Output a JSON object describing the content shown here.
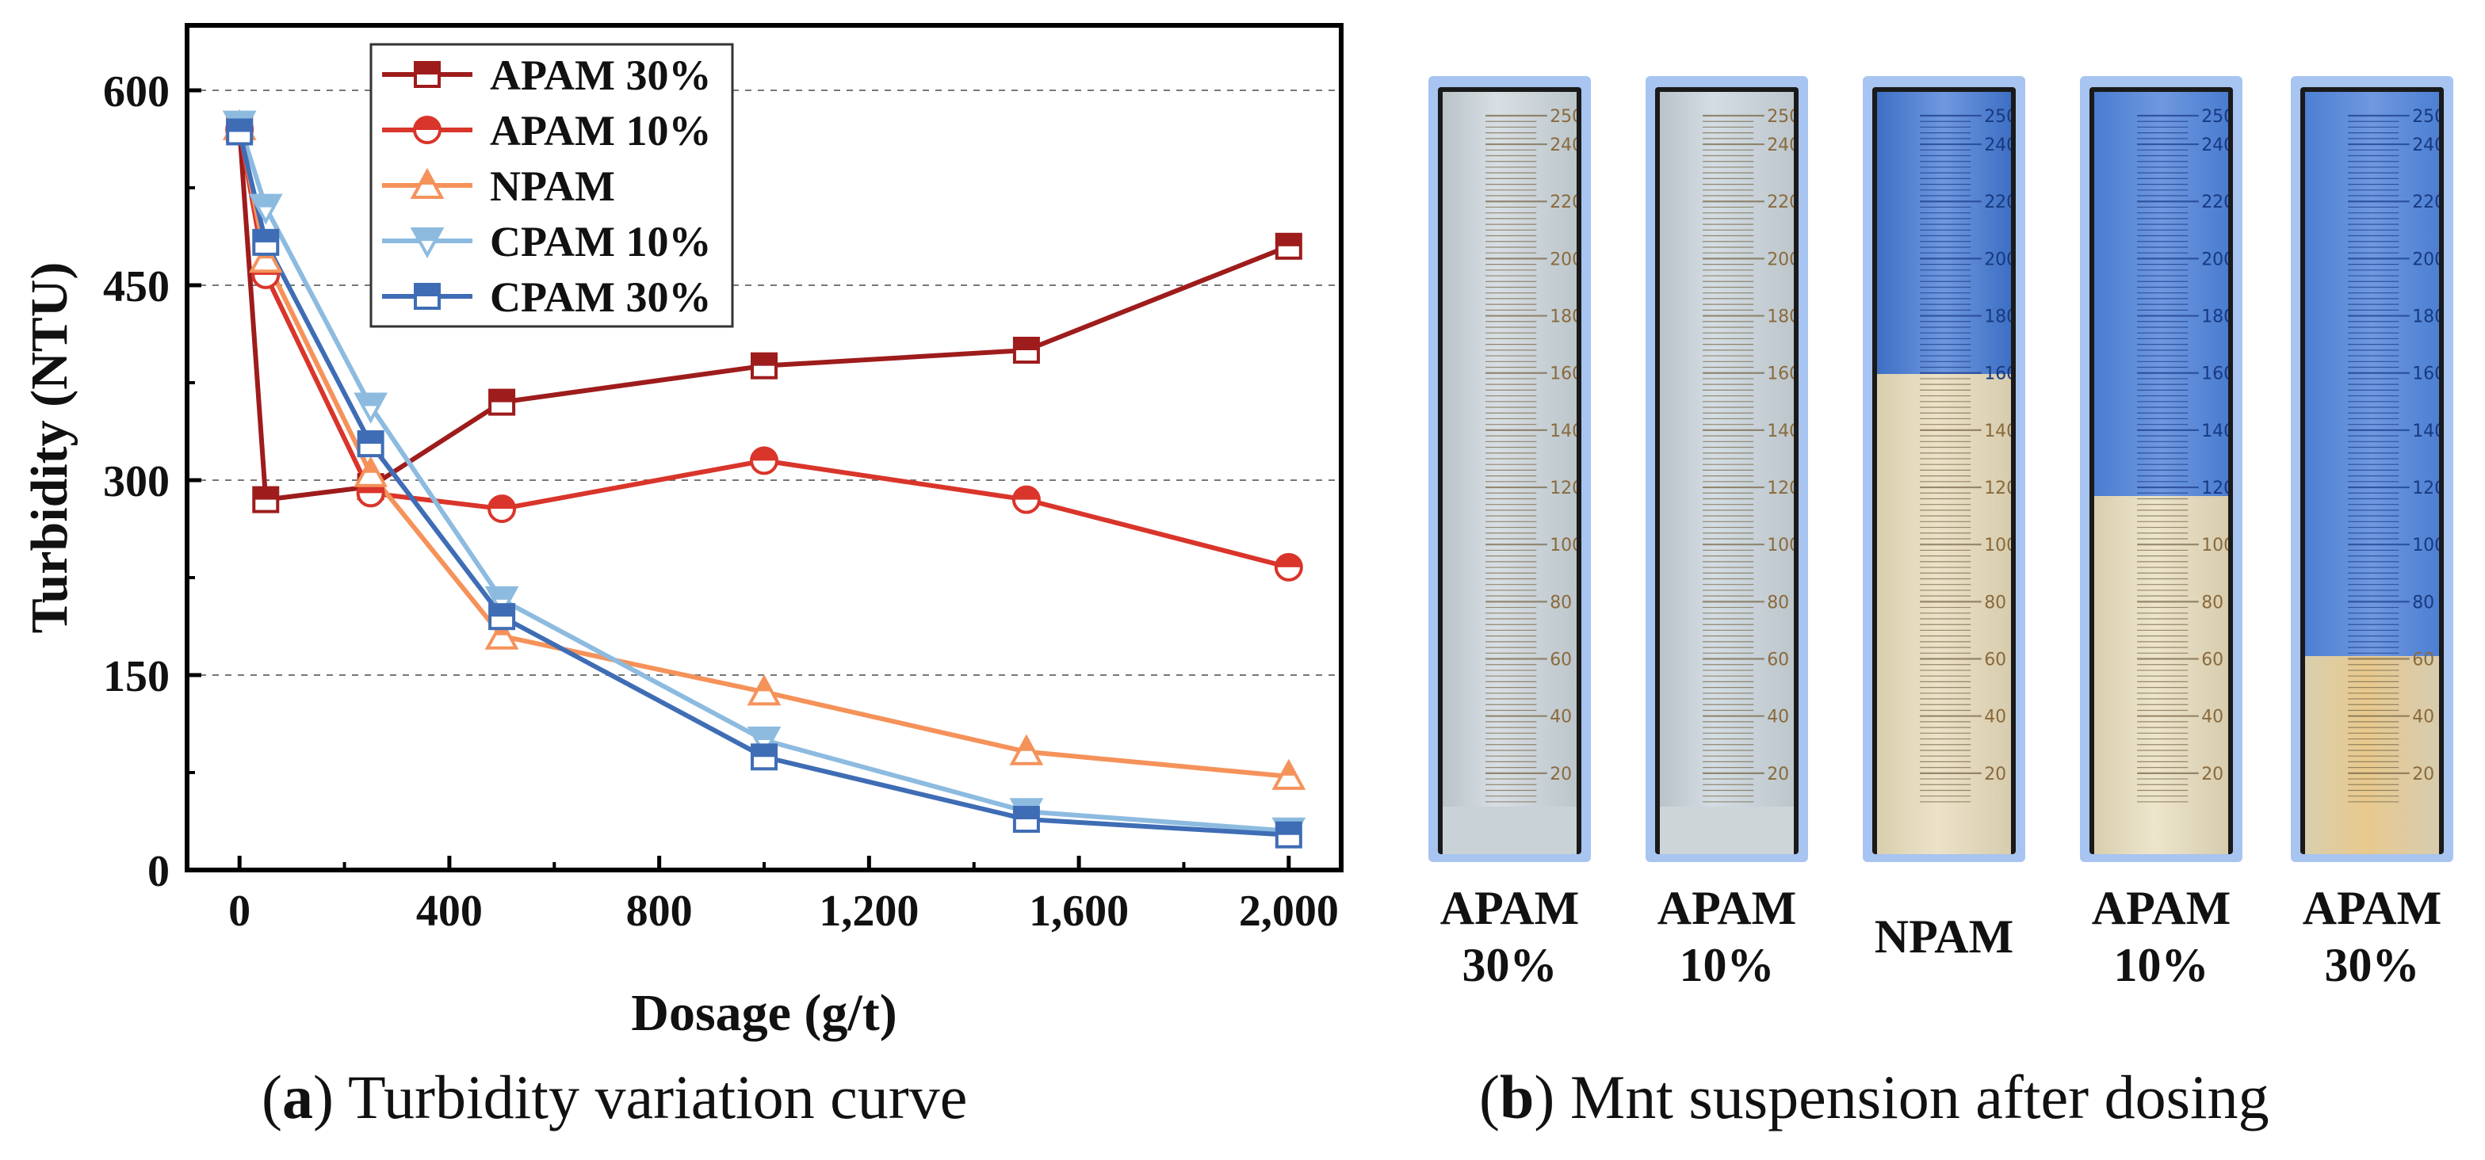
{
  "chart_data": {
    "type": "line",
    "xlabel": "Dosage (g/t)",
    "ylabel": "Turbidity (NTU)",
    "xlim": [
      -100,
      2100
    ],
    "ylim": [
      0,
      650
    ],
    "xticks": [
      0,
      400,
      800,
      1200,
      1600,
      2000
    ],
    "xtick_labels": [
      "0",
      "400",
      "800",
      "1,200",
      "1,600",
      "2,000"
    ],
    "yticks": [
      0,
      150,
      300,
      450,
      600
    ],
    "ytick_labels": [
      "0",
      "150",
      "300",
      "450",
      "600"
    ],
    "grid": "horizontal dashed",
    "legend_position": "top-left",
    "series": [
      {
        "name": "APAM 30%",
        "marker": "square",
        "color": "#9e1c1c",
        "x": [
          0,
          50,
          250,
          500,
          1000,
          1500,
          2000
        ],
        "values": [
          570,
          285,
          295,
          360,
          388,
          400,
          480
        ]
      },
      {
        "name": "APAM 10%",
        "marker": "circle",
        "color": "#d9352b",
        "x": [
          0,
          50,
          250,
          500,
          1000,
          1500,
          2000
        ],
        "values": [
          570,
          458,
          290,
          278,
          315,
          285,
          233
        ]
      },
      {
        "name": "NPAM",
        "marker": "triangle-up",
        "color": "#f5925a",
        "x": [
          0,
          50,
          250,
          500,
          1000,
          1500,
          2000
        ],
        "values": [
          572,
          470,
          305,
          180,
          137,
          91,
          72
        ]
      },
      {
        "name": "CPAM 10%",
        "marker": "triangle-down",
        "color": "#8dbbe0",
        "x": [
          0,
          50,
          250,
          500,
          1000,
          1500,
          2000
        ],
        "values": [
          574,
          510,
          357,
          208,
          100,
          45,
          30
        ]
      },
      {
        "name": "CPAM 30%",
        "marker": "square",
        "color": "#3f6db5",
        "x": [
          0,
          50,
          250,
          500,
          1000,
          1500,
          2000
        ],
        "values": [
          568,
          483,
          328,
          195,
          87,
          39,
          27
        ]
      }
    ]
  },
  "captions": {
    "a_letter": "a",
    "a_text": " Turbidity variation curve",
    "b_letter": "b",
    "b_text": " Mnt suspension after dosing"
  },
  "cylinders": [
    {
      "label_line1": "APAM",
      "label_line2": "30%",
      "clear_fraction": 0.0,
      "top_color": "#d8dfe4",
      "bottom_color": "#c9d2d6"
    },
    {
      "label_line1": "APAM",
      "label_line2": "10%",
      "clear_fraction": 0.0,
      "top_color": "#d4dde4",
      "bottom_color": "#cdd5d8"
    },
    {
      "label_line1": "NPAM",
      "label_line2": "",
      "clear_fraction": 0.37,
      "top_color": "#3d6fc4",
      "bottom_color": "#ece2c8"
    },
    {
      "label_line1": "APAM",
      "label_line2": "10%",
      "clear_fraction": 0.53,
      "top_color": "#4a7cd0",
      "bottom_color": "#ede5cc"
    },
    {
      "label_line1": "APAM",
      "label_line2": "30%",
      "clear_fraction": 0.74,
      "top_color": "#4d7fd3",
      "bottom_color": "#e8c98e"
    }
  ],
  "scale_labels": [
    "250",
    "240",
    "220",
    "200",
    "180",
    "160",
    "140",
    "120",
    "100",
    "80",
    "60",
    "40",
    "20"
  ],
  "scale_values": [
    250,
    240,
    220,
    200,
    180,
    160,
    140,
    120,
    100,
    80,
    60,
    40,
    20
  ]
}
